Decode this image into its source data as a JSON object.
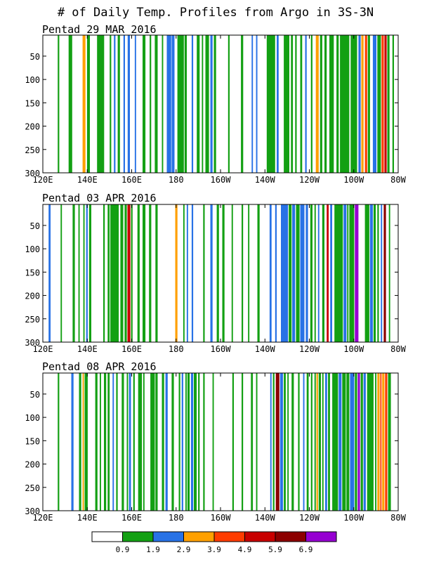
{
  "title": "# of Daily Temp. Profiles from Argo in 3S-3N",
  "colors": {
    "bins": [
      "#ffffff",
      "#13a013",
      "#2872e6",
      "#ffa000",
      "#ff3c00",
      "#c80000",
      "#8c0000",
      "#9600d2"
    ],
    "frame": "#000000"
  },
  "colorbar": {
    "labels": [
      "0.9",
      "1.9",
      "2.9",
      "3.9",
      "4.9",
      "5.9",
      "6.9"
    ]
  },
  "chart_data": [
    {
      "type": "bar",
      "panel_title": "Pentad 29 MAR 2016",
      "xlim": [
        120,
        280
      ],
      "ylim": [
        300,
        5
      ],
      "x_ticks": [
        120,
        140,
        160,
        180,
        200,
        220,
        240,
        260,
        280
      ],
      "x_tick_labels": [
        "120E",
        "140E",
        "160E",
        "180",
        "160W",
        "140W",
        "120W",
        "100W",
        "80W"
      ],
      "y_ticks": [
        50,
        100,
        150,
        200,
        250,
        300
      ],
      "y_tick_labels": [
        "50",
        "100",
        "150",
        "200",
        "250",
        "300"
      ],
      "bars": [
        {
          "x": 126.7,
          "x2": 127.4,
          "bin": 1
        },
        {
          "x": 131.6,
          "x2": 133.2,
          "bin": 1
        },
        {
          "x": 137.9,
          "x2": 139.2,
          "bin": 3
        },
        {
          "x": 139.9,
          "x2": 141.2,
          "bin": 1
        },
        {
          "x": 144.4,
          "x2": 147.6,
          "bin": 1
        },
        {
          "x": 150.1,
          "x2": 150.8,
          "bin": 1
        },
        {
          "x": 152.0,
          "x2": 152.7,
          "bin": 2
        },
        {
          "x": 153.7,
          "x2": 154.7,
          "bin": 1
        },
        {
          "x": 156.3,
          "x2": 157.0,
          "bin": 2
        },
        {
          "x": 158.2,
          "x2": 159.2,
          "bin": 2
        },
        {
          "x": 161.4,
          "x2": 162.0,
          "bin": 2
        },
        {
          "x": 164.9,
          "x2": 166.2,
          "bin": 1
        },
        {
          "x": 168.1,
          "x2": 168.8,
          "bin": 1
        },
        {
          "x": 170.4,
          "x2": 171.7,
          "bin": 1
        },
        {
          "x": 173.6,
          "x2": 174.2,
          "bin": 1
        },
        {
          "x": 175.8,
          "x2": 177.8,
          "bin": 2
        },
        {
          "x": 178.0,
          "x2": 179.3,
          "bin": 2
        },
        {
          "x": 180.6,
          "x2": 183.5,
          "bin": 1
        },
        {
          "x": 183.8,
          "x2": 184.8,
          "bin": 1
        },
        {
          "x": 187.0,
          "x2": 187.7,
          "bin": 2
        },
        {
          "x": 189.3,
          "x2": 190.6,
          "bin": 1
        },
        {
          "x": 191.6,
          "x2": 192.2,
          "bin": 1
        },
        {
          "x": 193.2,
          "x2": 194.8,
          "bin": 1
        },
        {
          "x": 195.4,
          "x2": 196.4,
          "bin": 2
        },
        {
          "x": 197.0,
          "x2": 198.0,
          "bin": 1
        },
        {
          "x": 203.4,
          "x2": 204.1,
          "bin": 1
        },
        {
          "x": 209.2,
          "x2": 210.2,
          "bin": 1
        },
        {
          "x": 214.0,
          "x2": 214.6,
          "bin": 2
        },
        {
          "x": 216.0,
          "x2": 216.6,
          "bin": 2
        },
        {
          "x": 220.8,
          "x2": 224.6,
          "bin": 1
        },
        {
          "x": 225.3,
          "x2": 226.2,
          "bin": 2
        },
        {
          "x": 228.5,
          "x2": 231.0,
          "bin": 1
        },
        {
          "x": 231.7,
          "x2": 232.6,
          "bin": 1
        },
        {
          "x": 233.6,
          "x2": 234.3,
          "bin": 1
        },
        {
          "x": 235.9,
          "x2": 236.8,
          "bin": 1
        },
        {
          "x": 238.1,
          "x2": 238.8,
          "bin": 2
        },
        {
          "x": 240.7,
          "x2": 241.4,
          "bin": 1
        },
        {
          "x": 242.9,
          "x2": 244.2,
          "bin": 3
        },
        {
          "x": 244.8,
          "x2": 245.8,
          "bin": 1
        },
        {
          "x": 246.8,
          "x2": 247.8,
          "bin": 1
        },
        {
          "x": 249.0,
          "x2": 251.0,
          "bin": 1
        },
        {
          "x": 252.2,
          "x2": 253.2,
          "bin": 1
        },
        {
          "x": 253.8,
          "x2": 258.0,
          "bin": 1
        },
        {
          "x": 258.6,
          "x2": 261.5,
          "bin": 1
        },
        {
          "x": 262.1,
          "x2": 263.1,
          "bin": 2
        },
        {
          "x": 263.4,
          "x2": 264.4,
          "bin": 3
        },
        {
          "x": 265.0,
          "x2": 266.0,
          "bin": 4
        },
        {
          "x": 266.3,
          "x2": 267.3,
          "bin": 1
        },
        {
          "x": 268.6,
          "x2": 270.2,
          "bin": 2
        },
        {
          "x": 270.6,
          "x2": 272.2,
          "bin": 1
        },
        {
          "x": 272.5,
          "x2": 273.5,
          "bin": 4
        },
        {
          "x": 273.8,
          "x2": 274.8,
          "bin": 5
        },
        {
          "x": 275.1,
          "x2": 276.1,
          "bin": 1
        },
        {
          "x": 277.4,
          "x2": 278.1,
          "bin": 1
        }
      ]
    },
    {
      "type": "bar",
      "panel_title": "Pentad 03 APR 2016",
      "xlim": [
        120,
        280
      ],
      "ylim": [
        300,
        5
      ],
      "x_ticks": [
        120,
        140,
        160,
        180,
        200,
        220,
        240,
        260,
        280
      ],
      "x_tick_labels": [
        "120E",
        "140E",
        "160E",
        "180",
        "160W",
        "140W",
        "120W",
        "100W",
        "80W"
      ],
      "y_ticks": [
        50,
        100,
        150,
        200,
        250,
        300
      ],
      "y_tick_labels": [
        "50",
        "100",
        "150",
        "200",
        "250",
        "300"
      ],
      "bars": [
        {
          "x": 122.6,
          "x2": 123.5,
          "bin": 2
        },
        {
          "x": 128.0,
          "x2": 128.6,
          "bin": 1
        },
        {
          "x": 133.4,
          "x2": 134.4,
          "bin": 1
        },
        {
          "x": 136.0,
          "x2": 136.6,
          "bin": 1
        },
        {
          "x": 138.2,
          "x2": 138.8,
          "bin": 1
        },
        {
          "x": 139.5,
          "x2": 140.2,
          "bin": 2
        },
        {
          "x": 140.8,
          "x2": 141.8,
          "bin": 1
        },
        {
          "x": 147.2,
          "x2": 147.9,
          "bin": 1
        },
        {
          "x": 149.2,
          "x2": 150.1,
          "bin": 1
        },
        {
          "x": 150.4,
          "x2": 154.2,
          "bin": 1
        },
        {
          "x": 154.9,
          "x2": 156.2,
          "bin": 1
        },
        {
          "x": 156.8,
          "x2": 157.8,
          "bin": 1
        },
        {
          "x": 158.1,
          "x2": 159.4,
          "bin": 5
        },
        {
          "x": 159.7,
          "x2": 160.4,
          "bin": 1
        },
        {
          "x": 162.6,
          "x2": 163.6,
          "bin": 1
        },
        {
          "x": 164.9,
          "x2": 166.2,
          "bin": 1
        },
        {
          "x": 167.8,
          "x2": 168.8,
          "bin": 1
        },
        {
          "x": 170.7,
          "x2": 171.7,
          "bin": 1
        },
        {
          "x": 179.6,
          "x2": 180.6,
          "bin": 3
        },
        {
          "x": 183.2,
          "x2": 183.8,
          "bin": 1
        },
        {
          "x": 184.8,
          "x2": 185.4,
          "bin": 2
        },
        {
          "x": 187.0,
          "x2": 187.7,
          "bin": 2
        },
        {
          "x": 192.2,
          "x2": 192.9,
          "bin": 1
        },
        {
          "x": 195.4,
          "x2": 196.4,
          "bin": 2
        },
        {
          "x": 198.3,
          "x2": 199.3,
          "bin": 1
        },
        {
          "x": 200.8,
          "x2": 201.8,
          "bin": 1
        },
        {
          "x": 205.0,
          "x2": 205.6,
          "bin": 1
        },
        {
          "x": 209.5,
          "x2": 210.2,
          "bin": 1
        },
        {
          "x": 212.4,
          "x2": 213.0,
          "bin": 1
        },
        {
          "x": 216.6,
          "x2": 217.6,
          "bin": 1
        },
        {
          "x": 222.1,
          "x2": 223.0,
          "bin": 2
        },
        {
          "x": 224.6,
          "x2": 225.3,
          "bin": 2
        },
        {
          "x": 227.2,
          "x2": 230.4,
          "bin": 2
        },
        {
          "x": 230.7,
          "x2": 232.0,
          "bin": 1
        },
        {
          "x": 232.3,
          "x2": 233.6,
          "bin": 2
        },
        {
          "x": 234.0,
          "x2": 235.6,
          "bin": 1
        },
        {
          "x": 235.9,
          "x2": 237.8,
          "bin": 2
        },
        {
          "x": 238.4,
          "x2": 239.4,
          "bin": 2
        },
        {
          "x": 240.4,
          "x2": 241.4,
          "bin": 1
        },
        {
          "x": 242.3,
          "x2": 242.9,
          "bin": 1
        },
        {
          "x": 243.9,
          "x2": 244.5,
          "bin": 2
        },
        {
          "x": 245.8,
          "x2": 246.8,
          "bin": 1
        },
        {
          "x": 247.8,
          "x2": 248.7,
          "bin": 5
        },
        {
          "x": 249.4,
          "x2": 250.3,
          "bin": 2
        },
        {
          "x": 251.3,
          "x2": 255.1,
          "bin": 1
        },
        {
          "x": 255.4,
          "x2": 256.7,
          "bin": 2
        },
        {
          "x": 257.0,
          "x2": 257.6,
          "bin": 1
        },
        {
          "x": 258.0,
          "x2": 260.2,
          "bin": 1
        },
        {
          "x": 260.5,
          "x2": 262.1,
          "bin": 7
        },
        {
          "x": 265.0,
          "x2": 267.0,
          "bin": 1
        },
        {
          "x": 267.3,
          "x2": 268.6,
          "bin": 2
        },
        {
          "x": 268.9,
          "x2": 269.9,
          "bin": 1
        },
        {
          "x": 270.6,
          "x2": 271.3,
          "bin": 1
        },
        {
          "x": 272.2,
          "x2": 272.8,
          "bin": 2
        },
        {
          "x": 273.5,
          "x2": 274.5,
          "bin": 6
        },
        {
          "x": 275.8,
          "x2": 276.4,
          "bin": 1
        }
      ]
    },
    {
      "type": "bar",
      "panel_title": "Pentad 08 APR 2016",
      "xlim": [
        120,
        280
      ],
      "ylim": [
        300,
        5
      ],
      "x_ticks": [
        120,
        140,
        160,
        180,
        200,
        220,
        240,
        260,
        280
      ],
      "x_tick_labels": [
        "120E",
        "140E",
        "160E",
        "180",
        "160W",
        "140W",
        "120W",
        "100W",
        "80W"
      ],
      "y_ticks": [
        50,
        100,
        150,
        200,
        250,
        300
      ],
      "y_tick_labels": [
        "50",
        "100",
        "150",
        "200",
        "250",
        "300"
      ],
      "bars": [
        {
          "x": 126.7,
          "x2": 127.4,
          "bin": 1
        },
        {
          "x": 132.8,
          "x2": 133.8,
          "bin": 2
        },
        {
          "x": 136.3,
          "x2": 137.3,
          "bin": 1
        },
        {
          "x": 137.9,
          "x2": 138.5,
          "bin": 3
        },
        {
          "x": 138.8,
          "x2": 140.2,
          "bin": 1
        },
        {
          "x": 143.6,
          "x2": 144.6,
          "bin": 1
        },
        {
          "x": 145.6,
          "x2": 146.2,
          "bin": 1
        },
        {
          "x": 147.5,
          "x2": 148.5,
          "bin": 1
        },
        {
          "x": 149.2,
          "x2": 150.1,
          "bin": 1
        },
        {
          "x": 151.4,
          "x2": 152.0,
          "bin": 2
        },
        {
          "x": 153.0,
          "x2": 153.7,
          "bin": 1
        },
        {
          "x": 155.5,
          "x2": 156.5,
          "bin": 1
        },
        {
          "x": 157.8,
          "x2": 158.4,
          "bin": 1
        },
        {
          "x": 158.8,
          "x2": 159.7,
          "bin": 2
        },
        {
          "x": 160.7,
          "x2": 161.4,
          "bin": 1
        },
        {
          "x": 162.9,
          "x2": 164.6,
          "bin": 1
        },
        {
          "x": 165.2,
          "x2": 165.8,
          "bin": 1
        },
        {
          "x": 168.4,
          "x2": 170.4,
          "bin": 1
        },
        {
          "x": 170.7,
          "x2": 171.7,
          "bin": 1
        },
        {
          "x": 173.6,
          "x2": 174.6,
          "bin": 1
        },
        {
          "x": 175.2,
          "x2": 176.2,
          "bin": 2
        },
        {
          "x": 178.0,
          "x2": 179.0,
          "bin": 1
        },
        {
          "x": 181.2,
          "x2": 181.9,
          "bin": 1
        },
        {
          "x": 182.5,
          "x2": 183.2,
          "bin": 2
        },
        {
          "x": 184.2,
          "x2": 184.8,
          "bin": 1
        },
        {
          "x": 185.1,
          "x2": 186.1,
          "bin": 1
        },
        {
          "x": 186.7,
          "x2": 187.7,
          "bin": 2
        },
        {
          "x": 188.0,
          "x2": 189.3,
          "bin": 1
        },
        {
          "x": 189.9,
          "x2": 190.6,
          "bin": 1
        },
        {
          "x": 192.2,
          "x2": 192.9,
          "bin": 1
        },
        {
          "x": 196.4,
          "x2": 197.0,
          "bin": 1
        },
        {
          "x": 205.3,
          "x2": 206.0,
          "bin": 1
        },
        {
          "x": 209.5,
          "x2": 210.2,
          "bin": 1
        },
        {
          "x": 213.7,
          "x2": 214.6,
          "bin": 1
        },
        {
          "x": 216.0,
          "x2": 216.6,
          "bin": 1
        },
        {
          "x": 223.6,
          "x2": 224.3,
          "bin": 1
        },
        {
          "x": 230.1,
          "x2": 230.7,
          "bin": 1
        },
        {
          "x": 222.4,
          "x2": 223.0,
          "bin": 2
        },
        {
          "x": 224.9,
          "x2": 226.5,
          "bin": 6
        },
        {
          "x": 226.8,
          "x2": 228.1,
          "bin": 2
        },
        {
          "x": 228.5,
          "x2": 229.4,
          "bin": 1
        },
        {
          "x": 232.0,
          "x2": 233.0,
          "bin": 1
        },
        {
          "x": 234.9,
          "x2": 235.6,
          "bin": 1
        },
        {
          "x": 237.2,
          "x2": 237.8,
          "bin": 2
        },
        {
          "x": 238.8,
          "x2": 239.7,
          "bin": 1
        },
        {
          "x": 240.7,
          "x2": 241.4,
          "bin": 1
        },
        {
          "x": 242.3,
          "x2": 242.9,
          "bin": 1
        },
        {
          "x": 243.2,
          "x2": 243.9,
          "bin": 3
        },
        {
          "x": 244.2,
          "x2": 245.2,
          "bin": 1
        },
        {
          "x": 245.8,
          "x2": 246.4,
          "bin": 1
        },
        {
          "x": 247.1,
          "x2": 248.0,
          "bin": 2
        },
        {
          "x": 248.4,
          "x2": 249.3,
          "bin": 1
        },
        {
          "x": 250.3,
          "x2": 252.9,
          "bin": 1
        },
        {
          "x": 253.2,
          "x2": 254.5,
          "bin": 2
        },
        {
          "x": 254.8,
          "x2": 256.4,
          "bin": 1
        },
        {
          "x": 256.7,
          "x2": 258.0,
          "bin": 1
        },
        {
          "x": 258.3,
          "x2": 260.2,
          "bin": 2
        },
        {
          "x": 260.5,
          "x2": 261.5,
          "bin": 1
        },
        {
          "x": 261.8,
          "x2": 262.8,
          "bin": 7
        },
        {
          "x": 263.1,
          "x2": 264.1,
          "bin": 1
        },
        {
          "x": 264.4,
          "x2": 265.4,
          "bin": 2
        },
        {
          "x": 266.0,
          "x2": 268.9,
          "bin": 1
        },
        {
          "x": 269.6,
          "x2": 270.2,
          "bin": 1
        },
        {
          "x": 270.6,
          "x2": 271.6,
          "bin": 3
        },
        {
          "x": 271.9,
          "x2": 272.5,
          "bin": 4
        },
        {
          "x": 272.8,
          "x2": 273.8,
          "bin": 3
        },
        {
          "x": 274.1,
          "x2": 275.1,
          "bin": 4
        },
        {
          "x": 275.4,
          "x2": 276.7,
          "bin": 1
        }
      ]
    }
  ]
}
